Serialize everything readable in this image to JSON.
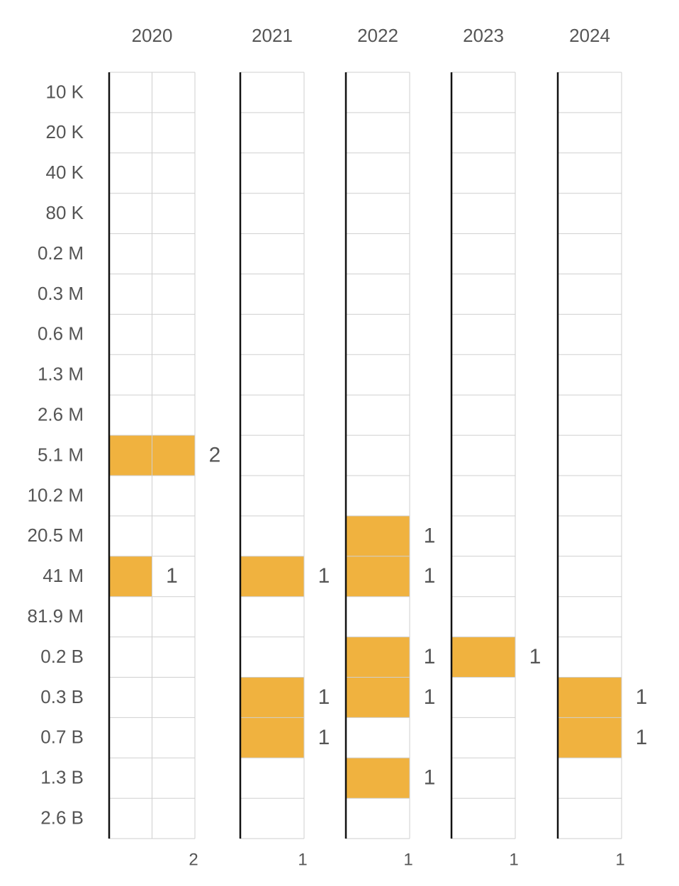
{
  "chart_data": {
    "type": "bar",
    "layout": "small-multiples-horizontal",
    "title": "",
    "xlabel": "",
    "ylabel": "",
    "categories": [
      "10 K",
      "20 K",
      "40 K",
      "80 K",
      "0.2 M",
      "0.3 M",
      "0.6 M",
      "1.3 M",
      "2.6 M",
      "5.1 M",
      "10.2 M",
      "20.5 M",
      "41 M",
      "81.9 M",
      "0.2 B",
      "0.3 B",
      "0.7 B",
      "1.3 B",
      "2.6 B"
    ],
    "bar_color": "#f0b23f",
    "panels": [
      {
        "label": "2020",
        "xmax": 2,
        "values": [
          0,
          0,
          0,
          0,
          0,
          0,
          0,
          0,
          0,
          2,
          0,
          0,
          1,
          0,
          0,
          0,
          0,
          0,
          0
        ]
      },
      {
        "label": "2021",
        "xmax": 1,
        "values": [
          0,
          0,
          0,
          0,
          0,
          0,
          0,
          0,
          0,
          0,
          0,
          0,
          1,
          0,
          0,
          1,
          1,
          0,
          0
        ]
      },
      {
        "label": "2022",
        "xmax": 1,
        "values": [
          0,
          0,
          0,
          0,
          0,
          0,
          0,
          0,
          0,
          0,
          0,
          1,
          1,
          0,
          1,
          1,
          0,
          1,
          0
        ]
      },
      {
        "label": "2023",
        "xmax": 1,
        "values": [
          0,
          0,
          0,
          0,
          0,
          0,
          0,
          0,
          0,
          0,
          0,
          0,
          0,
          0,
          1,
          0,
          0,
          0,
          0
        ]
      },
      {
        "label": "2024",
        "xmax": 1,
        "values": [
          0,
          0,
          0,
          0,
          0,
          0,
          0,
          0,
          0,
          0,
          0,
          0,
          0,
          0,
          0,
          1,
          1,
          0,
          0
        ]
      }
    ],
    "grid": true,
    "legend": "none"
  }
}
